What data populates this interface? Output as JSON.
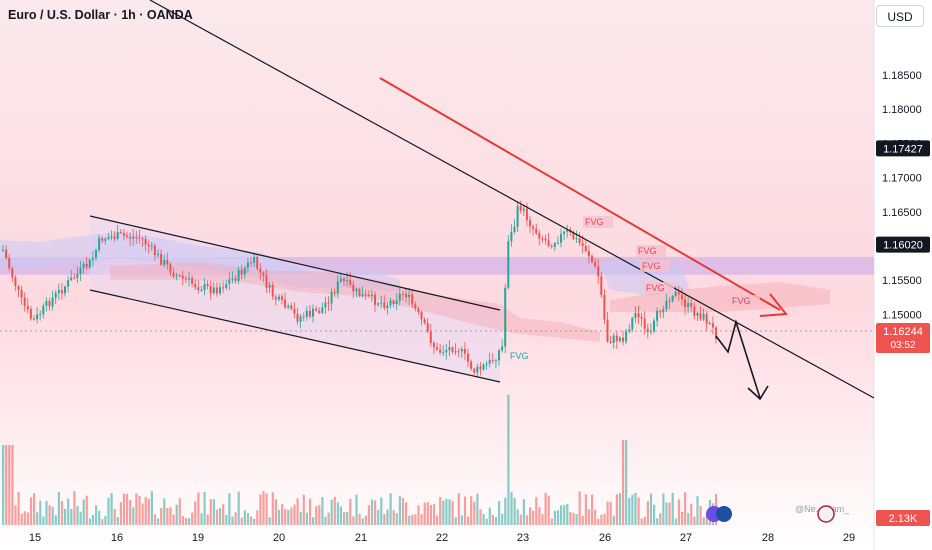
{
  "header": {
    "title": "Euro / U.S. Dollar · 1h · OANDA",
    "currency": "USD"
  },
  "watermark": "@Ne... Sam_",
  "chart_data": {
    "type": "candlestick",
    "symbol": "EURUSD",
    "timeframe": "1h",
    "broker": "OANDA",
    "y_ticks": [
      "1.18500",
      "1.18000",
      "1.17500",
      "1.17000",
      "1.16500",
      "1.16000",
      "1.15500",
      "1.15000"
    ],
    "x_ticks": [
      "15",
      "16",
      "19",
      "20",
      "21",
      "22",
      "23",
      "26",
      "27",
      "28",
      "29"
    ],
    "price_labels": {
      "level": "1.17427",
      "current": "1.16244",
      "countdown": "03:52",
      "support": "1.16020",
      "volume": "2.13K"
    },
    "annotations": {
      "fvg_label": "FVG",
      "fvg_count_red": 5,
      "fvg_count_green": 1
    },
    "colors": {
      "up": "#26a69a",
      "down": "#ef5350",
      "trend_arrow": "#e53935",
      "zone": "#d8b8e6",
      "background": "#fde6ea"
    },
    "projection": {
      "direction": "down",
      "target_zone": [
        1.1558,
        1.1584
      ]
    }
  }
}
